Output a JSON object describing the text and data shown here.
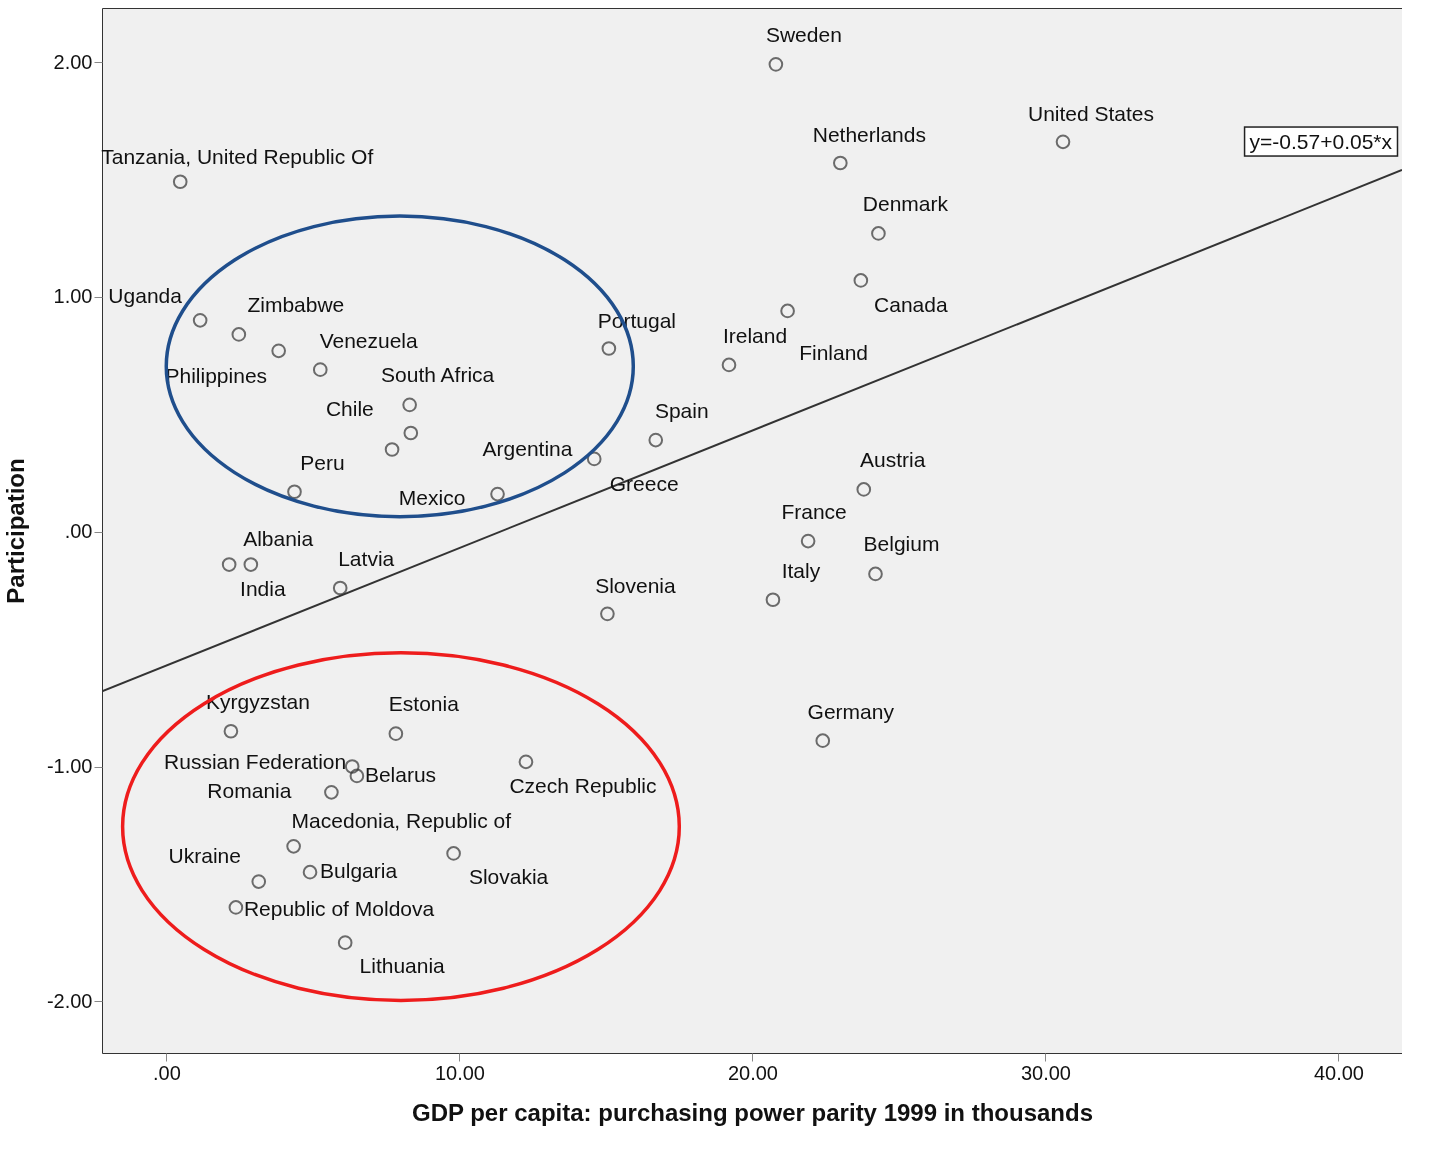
{
  "chart_data": {
    "type": "scatter",
    "xlabel": "GDP per capita:  purchasing power parity 1999 in thousands",
    "ylabel": "Participation",
    "xlim": [
      -2.2,
      42.17
    ],
    "ylim": [
      -2.22,
      2.23
    ],
    "xticks": [
      {
        "value": 0,
        "label": ".00"
      },
      {
        "value": 10,
        "label": "10.00"
      },
      {
        "value": 20,
        "label": "20.00"
      },
      {
        "value": 30,
        "label": "30.00"
      },
      {
        "value": 40,
        "label": "40.00"
      }
    ],
    "yticks": [
      {
        "value": -2,
        "label": "-2.00"
      },
      {
        "value": -1,
        "label": "-1.00"
      },
      {
        "value": 0,
        "label": ".00"
      },
      {
        "value": 1,
        "label": "1.00"
      },
      {
        "value": 2,
        "label": "2.00"
      }
    ],
    "grid": false,
    "series": [
      {
        "marker": "circle",
        "color": "#333333",
        "x": [
          20.8,
          30.6,
          23.0,
          0.47,
          24.3,
          23.7,
          21.2,
          1.15,
          2.47,
          3.83,
          5.25,
          15.1,
          19.2,
          8.3,
          8.34,
          7.7,
          11.3,
          14.6,
          16.7,
          23.8,
          4.37,
          21.9,
          24.2,
          2.14,
          2.88,
          5.93,
          20.7,
          15.05,
          22.4,
          2.2,
          7.83,
          12.27,
          6.34,
          6.5,
          5.63,
          4.34,
          9.8,
          4.9,
          3.15,
          2.37,
          6.1
        ],
        "values": [
          1.99,
          1.66,
          1.57,
          1.49,
          1.27,
          1.07,
          0.94,
          0.9,
          0.84,
          0.77,
          0.69,
          0.78,
          0.71,
          0.54,
          0.42,
          0.35,
          0.16,
          0.31,
          0.39,
          0.18,
          0.17,
          -0.04,
          -0.18,
          -0.14,
          -0.14,
          -0.24,
          -0.29,
          -0.35,
          -0.89,
          -0.85,
          -0.86,
          -0.98,
          -1.0,
          -1.04,
          -1.11,
          -1.34,
          -1.37,
          -1.45,
          -1.49,
          -1.6,
          -1.75
        ]
      },
      {
        "type": "line",
        "color": "#333333",
        "x": [
          -2.2,
          42.17
        ],
        "values": [
          -0.68,
          1.54
        ]
      }
    ],
    "annotations": [
      {
        "text": "Sweden",
        "x": 20.8,
        "y": 1.99
      },
      {
        "text": "United States",
        "x": 30.6,
        "y": 1.66
      },
      {
        "text": "Netherlands",
        "x": 23.0,
        "y": 1.57
      },
      {
        "text": "Tanzania, United Republic Of",
        "x": 0.47,
        "y": 1.49
      },
      {
        "text": "Denmark",
        "x": 24.3,
        "y": 1.27
      },
      {
        "text": "Canada",
        "x": 23.7,
        "y": 1.07
      },
      {
        "text": "Finland",
        "x": 21.2,
        "y": 0.94
      },
      {
        "text": "Uganda",
        "x": 1.15,
        "y": 0.9
      },
      {
        "text": "Zimbabwe",
        "x": 2.47,
        "y": 0.84
      },
      {
        "text": "Venezuela",
        "x": 3.83,
        "y": 0.77
      },
      {
        "text": "Philippines",
        "x": 5.25,
        "y": 0.69
      },
      {
        "text": "Portugal",
        "x": 15.1,
        "y": 0.78
      },
      {
        "text": "Ireland",
        "x": 19.2,
        "y": 0.71
      },
      {
        "text": "South Africa",
        "x": 8.3,
        "y": 0.54
      },
      {
        "text": "Chile",
        "x": 8.34,
        "y": 0.42
      },
      {
        "text": "Mexico",
        "x": 7.7,
        "y": 0.35
      },
      {
        "text": "Argentina",
        "x": 11.3,
        "y": 0.16
      },
      {
        "text": "Greece",
        "x": 14.6,
        "y": 0.31
      },
      {
        "text": "Spain",
        "x": 16.7,
        "y": 0.39
      },
      {
        "text": "Austria",
        "x": 23.8,
        "y": 0.18
      },
      {
        "text": "Peru",
        "x": 4.37,
        "y": 0.17
      },
      {
        "text": "France",
        "x": 21.9,
        "y": -0.04
      },
      {
        "text": "Belgium",
        "x": 24.2,
        "y": -0.18
      },
      {
        "text": "Albania",
        "x": 2.14,
        "y": -0.14
      },
      {
        "text": "India",
        "x": 2.88,
        "y": -0.14
      },
      {
        "text": "Latvia",
        "x": 5.93,
        "y": -0.24
      },
      {
        "text": "Italy",
        "x": 20.7,
        "y": -0.29
      },
      {
        "text": "Slovenia",
        "x": 15.05,
        "y": -0.35
      },
      {
        "text": "Germany",
        "x": 22.4,
        "y": -0.89
      },
      {
        "text": "Kyrgyzstan",
        "x": 2.2,
        "y": -0.85
      },
      {
        "text": "Estonia",
        "x": 7.83,
        "y": -0.86
      },
      {
        "text": "Czech Republic",
        "x": 12.27,
        "y": -0.98
      },
      {
        "text": "Russian Federation",
        "x": 6.34,
        "y": -1.0
      },
      {
        "text": "Belarus",
        "x": 6.5,
        "y": -1.04
      },
      {
        "text": "Romania",
        "x": 5.63,
        "y": -1.11
      },
      {
        "text": "Macedonia, Republic of",
        "x": 4.34,
        "y": -1.34
      },
      {
        "text": "Slovakia",
        "x": 9.8,
        "y": -1.37
      },
      {
        "text": "Bulgaria",
        "x": 4.9,
        "y": -1.45
      },
      {
        "text": "Ukraine",
        "x": 3.15,
        "y": -1.49
      },
      {
        "text": "Republic of Moldova",
        "x": 2.37,
        "y": -1.6
      },
      {
        "text": "Lithuania",
        "x": 6.1,
        "y": -1.75
      },
      {
        "text": "y=-0.57+0.05*x",
        "x": 42.17,
        "y": 1.54
      }
    ]
  }
}
